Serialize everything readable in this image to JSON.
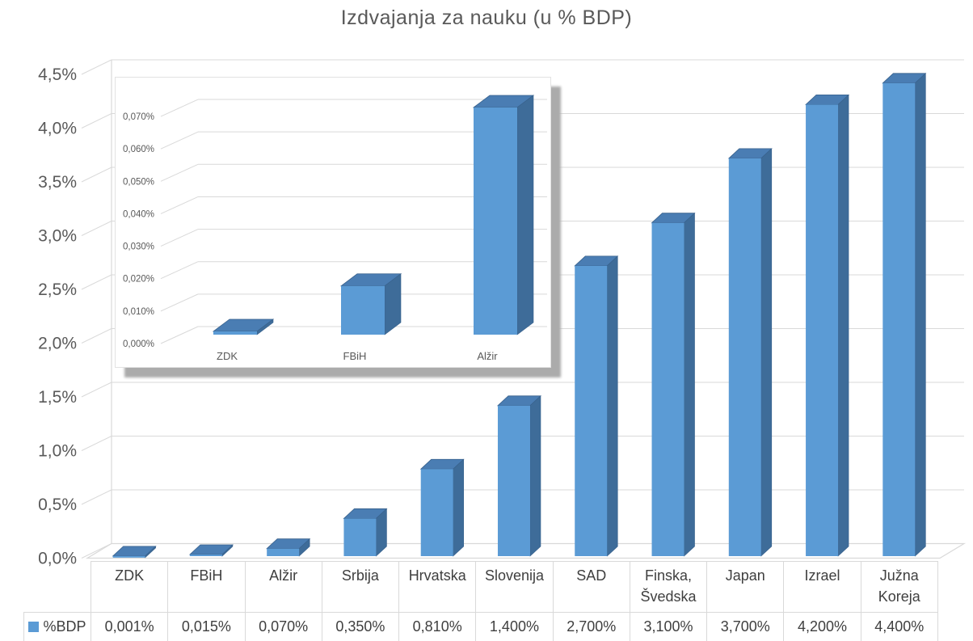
{
  "chart_data": {
    "type": "bar",
    "effect": "3d",
    "title": "Izdvajanja za nauku (u % BDP)",
    "series_name": "%BDP",
    "legend_position": "bottom-table",
    "grid": true,
    "categories": [
      "ZDK",
      "FBiH",
      "Alžir",
      "Srbija",
      "Hrvatska",
      "Slovenija",
      "SAD",
      "Finska, Švedska",
      "Japan",
      "Izrael",
      "Južna Koreja"
    ],
    "category_lines": [
      [
        "ZDK"
      ],
      [
        "FBiH"
      ],
      [
        "Alžir"
      ],
      [
        "Srbija"
      ],
      [
        "Hrvatska"
      ],
      [
        "Slovenija"
      ],
      [
        "SAD"
      ],
      [
        "Finska,",
        "Švedska"
      ],
      [
        "Japan"
      ],
      [
        "Izrael"
      ],
      [
        "Južna",
        "Koreja"
      ]
    ],
    "values": [
      0.001,
      0.015,
      0.07,
      0.35,
      0.81,
      1.4,
      2.7,
      3.1,
      3.7,
      4.2,
      4.4
    ],
    "value_labels": [
      "0,001%",
      "0,015%",
      "0,070%",
      "0,350%",
      "0,810%",
      "1,400%",
      "2,700%",
      "3,100%",
      "3,700%",
      "4,200%",
      "4,400%"
    ],
    "ylabel": "",
    "xlabel": "",
    "ylim": [
      0,
      4.5
    ],
    "y_ticks": [
      "0,0%",
      "0,5%",
      "1,0%",
      "1,5%",
      "2,0%",
      "2,5%",
      "3,0%",
      "3,5%",
      "4,0%",
      "4,5%"
    ],
    "inset": {
      "type": "bar",
      "effect": "3d",
      "categories": [
        "ZDK",
        "FBiH",
        "Alžir"
      ],
      "values": [
        0.001,
        0.015,
        0.07
      ],
      "ylim": [
        0,
        0.07
      ],
      "y_ticks": [
        "0,000%",
        "0,010%",
        "0,020%",
        "0,030%",
        "0,040%",
        "0,050%",
        "0,060%",
        "0,070%"
      ]
    },
    "colors": {
      "bar_front": "#5b9bd5",
      "bar_top": "#4a7db3",
      "bar_side": "#3e6c99",
      "bar_edge": "#38618c",
      "grid": "#d9d9d9",
      "axis_text": "#595959",
      "table_text": "#3f3f3f",
      "table_border": "#d9d9d9",
      "inset_shadow": "#ababab",
      "legend_swatch": "#5b9bd5"
    }
  }
}
